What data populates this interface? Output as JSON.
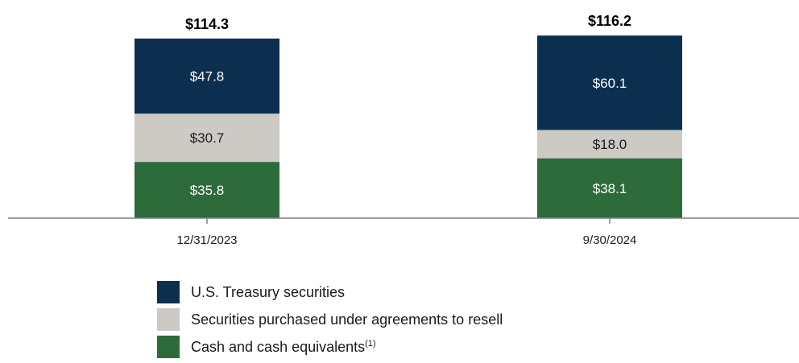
{
  "chart_data": {
    "type": "bar",
    "stacked": true,
    "categories": [
      "12/31/2023",
      "9/30/2024"
    ],
    "series": [
      {
        "name": "Cash and cash equivalents",
        "name_note": "(1)",
        "values": [
          35.8,
          38.1
        ],
        "labels": [
          "$35.8",
          "$38.1"
        ],
        "color": "#2e6b3a",
        "label_color": "#ffffff"
      },
      {
        "name": "Securities purchased under agreements to resell",
        "values": [
          30.7,
          18.0
        ],
        "labels": [
          "$30.7",
          "$18.0"
        ],
        "color": "#cdcac6",
        "label_color": "#1a1a1a"
      },
      {
        "name": "U.S. Treasury securities",
        "values": [
          47.8,
          60.1
        ],
        "labels": [
          "$47.8",
          "$60.1"
        ],
        "color": "#0d2f4f",
        "label_color": "#ffffff"
      }
    ],
    "totals": [
      114.3,
      116.2
    ],
    "total_labels": [
      "$114.3",
      "$116.2"
    ],
    "title": "",
    "xlabel": "",
    "ylabel": "",
    "ylim": [
      0,
      125
    ],
    "legend_position": "bottom-left",
    "grid": false,
    "axis_color": "#808080"
  }
}
